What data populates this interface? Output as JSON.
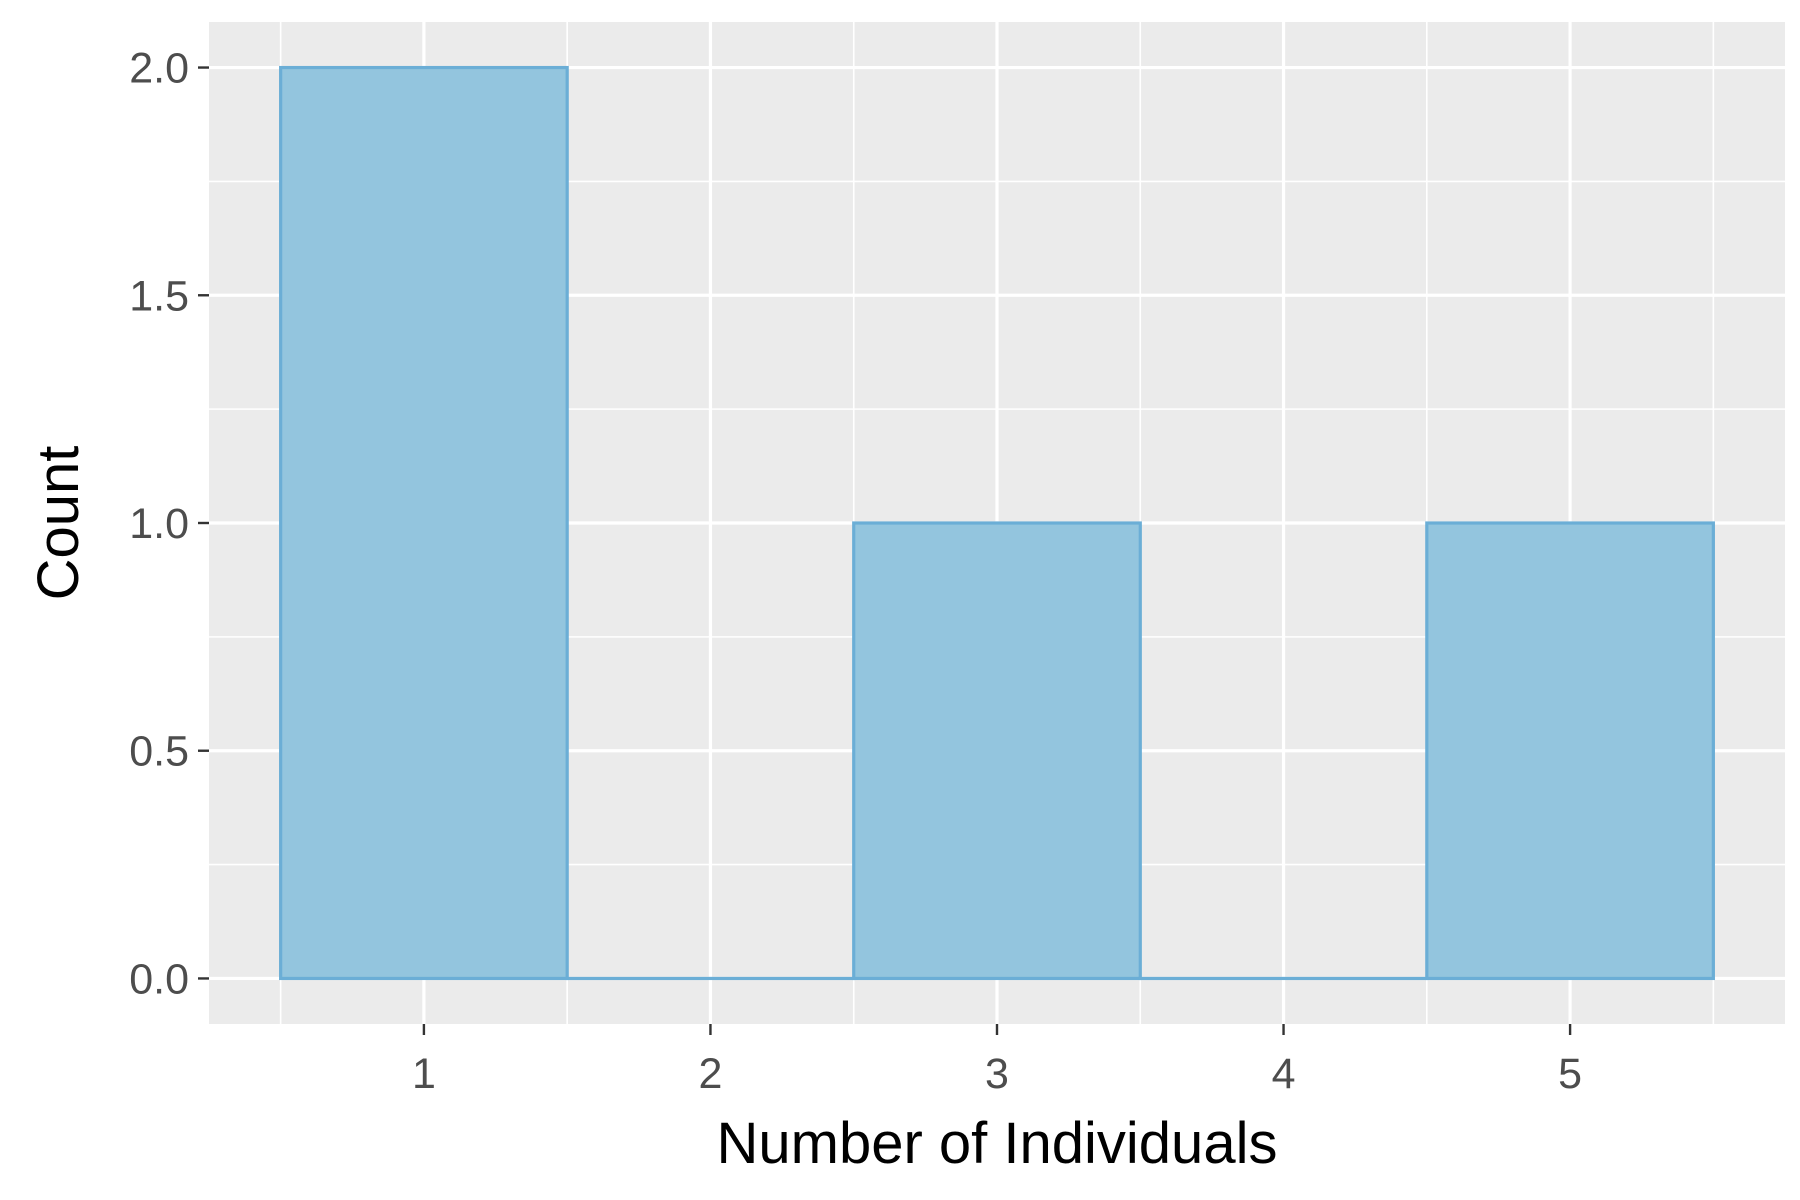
{
  "chart_data": {
    "type": "bar",
    "title": "",
    "xlabel": "Number of Individuals",
    "ylabel": "Count",
    "x_bins": [
      {
        "center": 1,
        "low": 0.5,
        "high": 1.5,
        "count": 2
      },
      {
        "center": 2,
        "low": 1.5,
        "high": 2.5,
        "count": 0
      },
      {
        "center": 3,
        "low": 2.5,
        "high": 3.5,
        "count": 1
      },
      {
        "center": 4,
        "low": 3.5,
        "high": 4.5,
        "count": 0
      },
      {
        "center": 5,
        "low": 4.5,
        "high": 5.5,
        "count": 1
      }
    ],
    "xlim": [
      0.25,
      5.75
    ],
    "ylim": [
      -0.1,
      2.1
    ],
    "x_ticks": [
      {
        "value": 1,
        "label": "1"
      },
      {
        "value": 2,
        "label": "2"
      },
      {
        "value": 3,
        "label": "3"
      },
      {
        "value": 4,
        "label": "4"
      },
      {
        "value": 5,
        "label": "5"
      }
    ],
    "y_ticks": [
      {
        "value": 0,
        "label": "0.0"
      },
      {
        "value": 0.5,
        "label": "0.5"
      },
      {
        "value": 1,
        "label": "1.0"
      },
      {
        "value": 1.5,
        "label": "1.5"
      },
      {
        "value": 2,
        "label": "2.0"
      }
    ],
    "grid": true,
    "legend": "none",
    "colors": {
      "panel_background": "#ebebeb",
      "grid_line": "#ffffff",
      "bar_fill": "#93c5de",
      "bar_outline": "#6baed6",
      "tick_mark": "#333333"
    }
  }
}
